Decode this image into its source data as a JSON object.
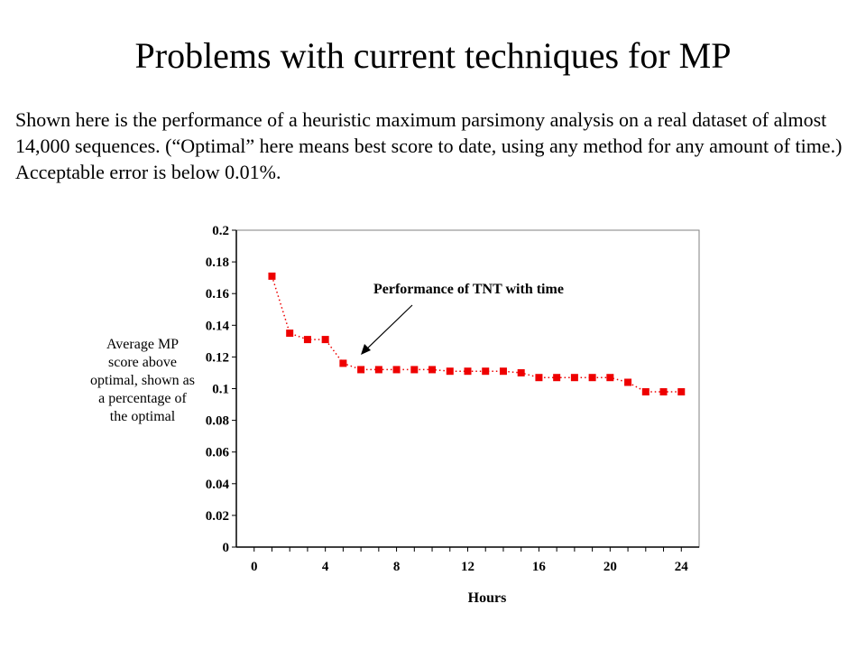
{
  "slide": {
    "title": "Problems with current techniques for MP",
    "body": "Shown here is the performance of a heuristic  maximum parsimony analysis on a real dataset of almost 14,000 sequences. (“Optimal” here means best score to date, using any method for any amount of time.)  Acceptable error is below 0.01%."
  },
  "chart_data": {
    "type": "line",
    "xlabel": "Hours",
    "ylabel_lines": [
      "Average MP",
      "score above",
      "optimal, shown as",
      "a percentage of",
      "the optimal"
    ],
    "annotation": "Performance of TNT with time",
    "xlim": [
      -1,
      25
    ],
    "ylim": [
      0,
      0.2
    ],
    "x_ticks": [
      0,
      4,
      8,
      12,
      16,
      20,
      24
    ],
    "y_ticks": [
      0,
      0.02,
      0.04,
      0.06,
      0.08,
      0.1,
      0.12,
      0.14,
      0.16,
      0.18,
      0.2
    ],
    "y_tick_labels": [
      "0",
      "0.02",
      "0.04",
      "0.06",
      "0.08",
      "0.1",
      "0.12",
      "0.14",
      "0.16",
      "0.18",
      "0.2"
    ],
    "series": [
      {
        "color": "#ee0000",
        "marker": "square",
        "line_style": "dotted",
        "x": [
          1,
          2,
          3,
          4,
          5,
          6,
          7,
          8,
          9,
          10,
          11,
          12,
          13,
          14,
          15,
          16,
          17,
          18,
          19,
          20,
          21,
          22,
          23,
          24
        ],
        "y": [
          0.171,
          0.135,
          0.131,
          0.131,
          0.116,
          0.112,
          0.112,
          0.112,
          0.112,
          0.112,
          0.111,
          0.111,
          0.111,
          0.111,
          0.11,
          0.107,
          0.107,
          0.107,
          0.107,
          0.107,
          0.104,
          0.098,
          0.098,
          0.098
        ]
      }
    ],
    "grid": false,
    "legend": "none"
  }
}
